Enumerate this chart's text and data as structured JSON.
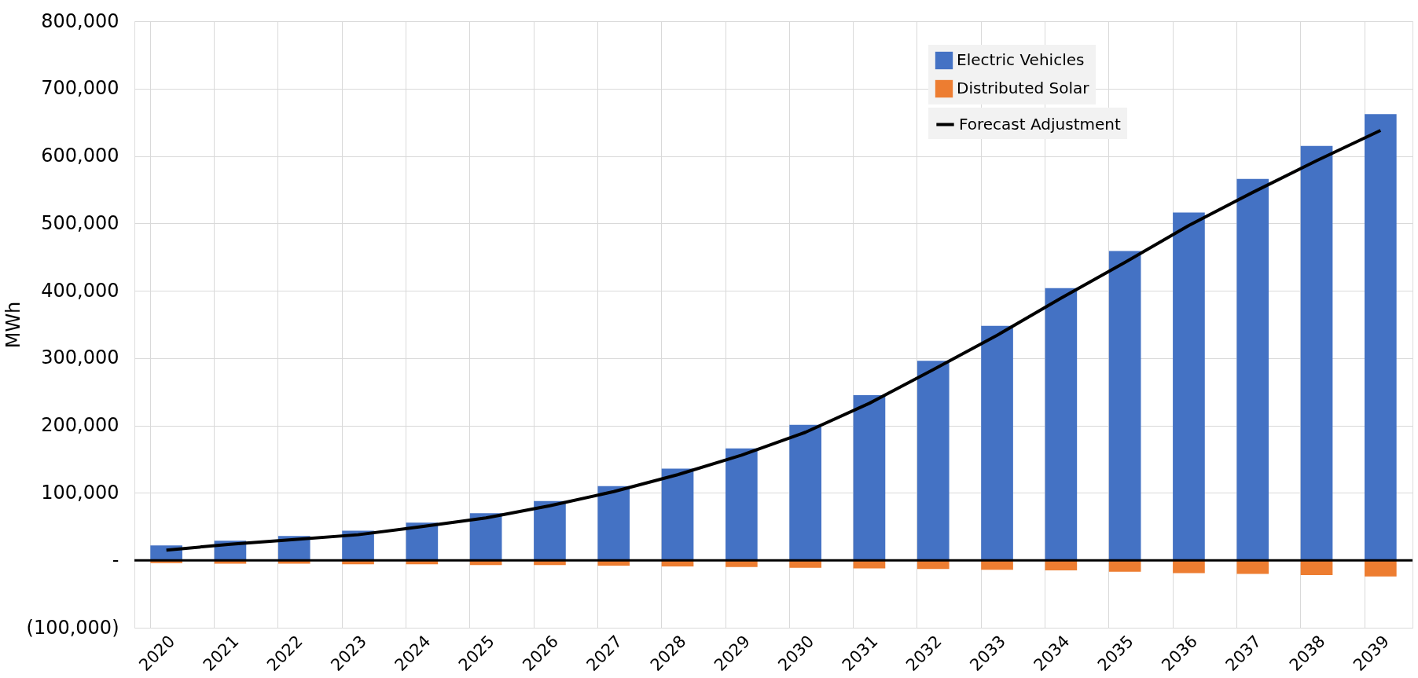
{
  "chart_data": {
    "type": "bar",
    "ylabel": "MWh",
    "stacked": true,
    "categories": [
      "2020",
      "2021",
      "2022",
      "2023",
      "2024",
      "2025",
      "2026",
      "2027",
      "2028",
      "2029",
      "2030",
      "2031",
      "2032",
      "2033",
      "2034",
      "2035",
      "2036",
      "2037",
      "2038",
      "2039"
    ],
    "series": [
      {
        "name": "Electric Vehicles",
        "color": "#4472c4",
        "values": [
          22000,
          29000,
          36000,
          44000,
          56000,
          70000,
          88000,
          110000,
          136000,
          166000,
          201000,
          245000,
          296000,
          348000,
          404000,
          459000,
          516000,
          566000,
          615000,
          662000
        ]
      },
      {
        "name": "Distributed Solar",
        "color": "#ed7d31",
        "values": [
          -4000,
          -5000,
          -5000,
          -6000,
          -6000,
          -7000,
          -7000,
          -8000,
          -9000,
          -10000,
          -11000,
          -12000,
          -13000,
          -14000,
          -15000,
          -17000,
          -19000,
          -20000,
          -22000,
          -24000
        ]
      },
      {
        "name": "Forecast Adjustment",
        "type": "line",
        "color": "#000000",
        "values": [
          15000,
          24000,
          31000,
          38000,
          50000,
          63000,
          81000,
          102000,
          127000,
          156000,
          190000,
          233000,
          283000,
          334000,
          389000,
          442000,
          497000,
          546000,
          593000,
          638000
        ]
      }
    ],
    "ylim": [
      -100000,
      800000
    ],
    "yticks": [
      {
        "value": -100000,
        "label": "(100,000)"
      },
      {
        "value": 0,
        "label": "-"
      },
      {
        "value": 100000,
        "label": "100,000"
      },
      {
        "value": 200000,
        "label": "200,000"
      },
      {
        "value": 300000,
        "label": "300,000"
      },
      {
        "value": 400000,
        "label": "400,000"
      },
      {
        "value": 500000,
        "label": "500,000"
      },
      {
        "value": 600000,
        "label": "600,000"
      },
      {
        "value": 700000,
        "label": "700,000"
      },
      {
        "value": 800000,
        "label": "800,000"
      }
    ],
    "ref_lines": [
      {
        "axis": "y",
        "value": 0,
        "color": "#000000"
      }
    ],
    "grid": true,
    "legend": "top right"
  }
}
